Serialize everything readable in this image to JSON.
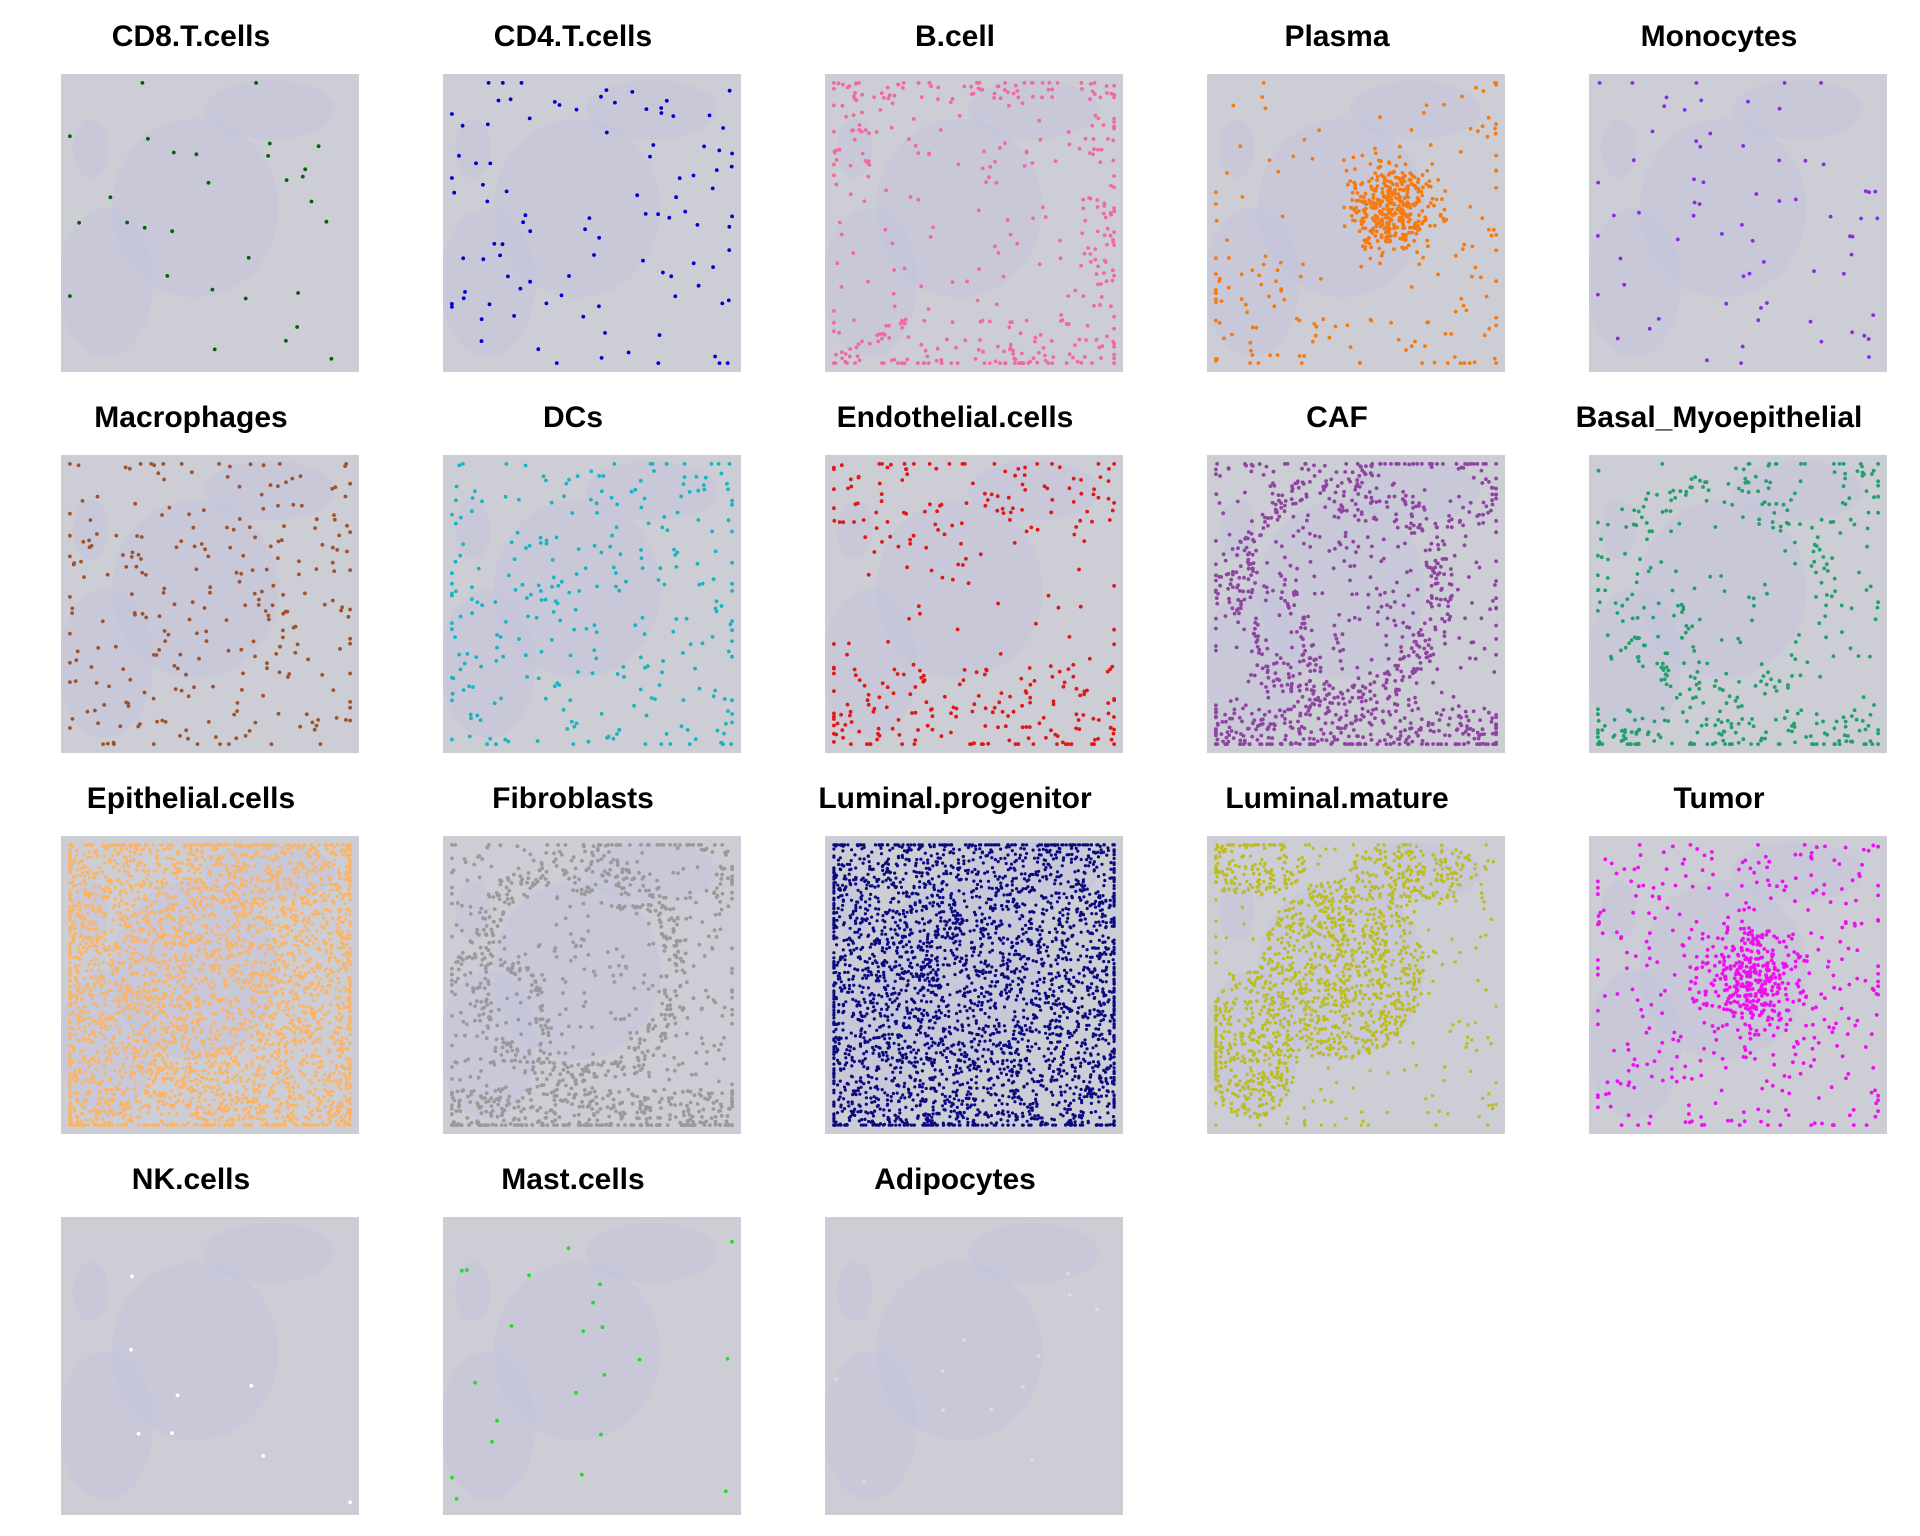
{
  "chart_data": {
    "type": "scatter",
    "background_color": "#cdcdd6",
    "panels": [
      {
        "title": "CD8.T.cells",
        "color": "#006400",
        "approx_points": 30,
        "pattern": "sparse"
      },
      {
        "title": "CD4.T.cells",
        "color": "#0000cd",
        "approx_points": 100,
        "pattern": "sparse"
      },
      {
        "title": "B.cell",
        "color": "#f06aa0",
        "approx_points": 400,
        "pattern": "border"
      },
      {
        "title": "Plasma",
        "color": "#f57a10",
        "approx_points": 550,
        "pattern": "center_clusters"
      },
      {
        "title": "Monocytes",
        "color": "#8a2be2",
        "approx_points": 70,
        "pattern": "sparse"
      },
      {
        "title": "Macrophages",
        "color": "#a0522d",
        "approx_points": 260,
        "pattern": "sparse"
      },
      {
        "title": "DCs",
        "color": "#17b5c2",
        "approx_points": 280,
        "pattern": "sparse"
      },
      {
        "title": "Endothelial.cells",
        "color": "#e01818",
        "approx_points": 320,
        "pattern": "bottom_band"
      },
      {
        "title": "CAF",
        "color": "#8e44a0",
        "approx_points": 1100,
        "pattern": "stroma"
      },
      {
        "title": "Basal_Myoepithelial",
        "color": "#22a06b",
        "approx_points": 450,
        "pattern": "stroma"
      },
      {
        "title": "Epithelial.cells",
        "color": "#fdb462",
        "approx_points": 3500,
        "pattern": "dense"
      },
      {
        "title": "Fibroblasts",
        "color": "#9a9a9a",
        "approx_points": 1200,
        "pattern": "stroma"
      },
      {
        "title": "Luminal.progenitor",
        "color": "#0a0a80",
        "approx_points": 3200,
        "pattern": "dense"
      },
      {
        "title": "Luminal.mature",
        "color": "#bcbd22",
        "approx_points": 7000,
        "pattern": "epithelium"
      },
      {
        "title": "Tumor",
        "color": "#ee10ee",
        "approx_points": 700,
        "pattern": "center"
      },
      {
        "title": "NK.cells",
        "color": "#ffffff",
        "approx_points": 8,
        "pattern": "sparse"
      },
      {
        "title": "Mast.cells",
        "color": "#22dd22",
        "approx_points": 22,
        "pattern": "sparse"
      },
      {
        "title": "Adipocytes",
        "color": "#dddddd",
        "approx_points": 12,
        "pattern": "sparse"
      }
    ]
  }
}
